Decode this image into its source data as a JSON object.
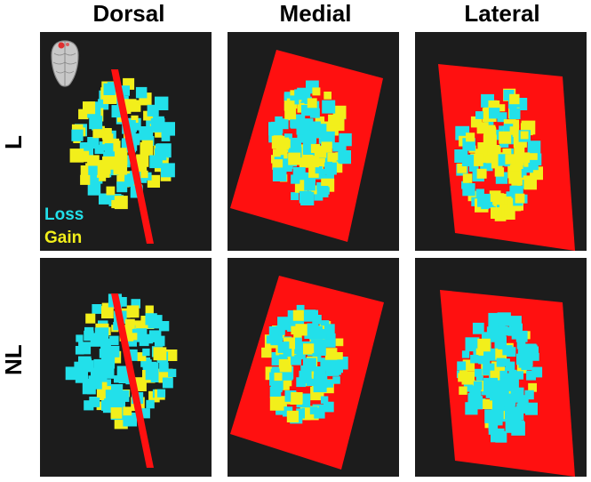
{
  "columns": [
    "Dorsal",
    "Medial",
    "Lateral"
  ],
  "rows": [
    "L",
    "NL"
  ],
  "legend": {
    "loss": {
      "label": "Loss",
      "color": "#22e0ea"
    },
    "gain": {
      "label": "Gain",
      "color": "#f2ef1b"
    }
  },
  "plane_color": "#ff1010",
  "panel_background": "#1c1c1c",
  "icon": "brain-orientation-icon"
}
